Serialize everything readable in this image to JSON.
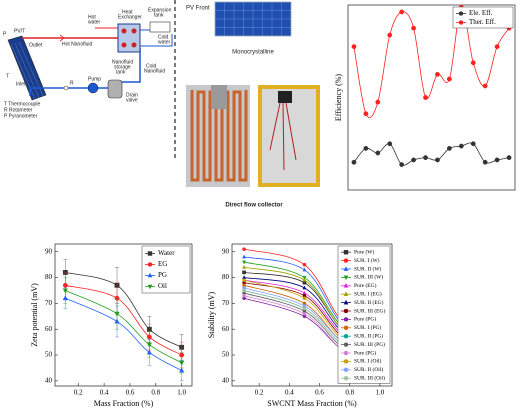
{
  "diagram": {
    "pvt": "PV/T",
    "p": "P",
    "t": "T",
    "inlet": "Inlet",
    "outlet": "Outlet",
    "hot_water": [
      "Hot",
      "water"
    ],
    "heat_exchanger": [
      "Heat",
      "Exchanger"
    ],
    "expansion_tank": [
      "Expansion",
      "tank"
    ],
    "cold_water": [
      "Cold",
      "water"
    ],
    "hot_nanofluid": "Hot Nanofluid",
    "cold_nanofluid": [
      "Cold",
      "Nanofluid"
    ],
    "r": "R",
    "pump": "Pump",
    "storage_tank": [
      "Nanofluid",
      "storage",
      "tank"
    ],
    "drain_valve": [
      "Drain",
      "valve"
    ],
    "legend": [
      "T  Thermocouple",
      "R  Rotameter",
      "P  Pyranometer"
    ],
    "pv_front": "PV Front",
    "monocrystalline": "Monocrystalline",
    "direct_flow": "Direct flow collector"
  },
  "chart_data": [
    {
      "type": "line",
      "ylabel": "Efficiency (%)",
      "smooth": true,
      "categories": [
        null,
        null,
        null,
        null,
        null,
        null,
        null,
        null,
        null,
        null,
        null,
        null,
        null,
        null
      ],
      "ylim": [
        0,
        80
      ],
      "legend": "upper right",
      "series": [
        {
          "name": "Ele. Eff.",
          "color": "#333333",
          "marker": "circle",
          "values": [
            12,
            18,
            16,
            20,
            11,
            13,
            14,
            13,
            18,
            19,
            20,
            12,
            13,
            14
          ]
        },
        {
          "name": "Ther. Eff.",
          "color": "#ff2020",
          "marker": "circle",
          "values": [
            62,
            33,
            38,
            67,
            77,
            70,
            40,
            50,
            48,
            79,
            55,
            45,
            62,
            70
          ]
        }
      ]
    },
    {
      "type": "line",
      "ylabel": "Zeta potential (mV)",
      "xlabel": "Mass Fraction (%)",
      "smooth": true,
      "x": [
        0.1,
        0.5,
        0.75,
        1.0
      ],
      "xlim": [
        0.02,
        1.08
      ],
      "ylim": [
        38,
        93
      ],
      "xticks": [
        0.2,
        0.4,
        0.6,
        0.8,
        {
          "value": 1,
          "label": "1.0"
        }
      ],
      "yticks": [
        40,
        50,
        60,
        70,
        80,
        90
      ],
      "legend": "upper right",
      "series": [
        {
          "name": "Water",
          "color": "#333333",
          "marker": "square",
          "values": [
            82,
            77,
            60,
            53
          ],
          "errors": [
            5,
            7,
            5,
            5
          ]
        },
        {
          "name": "EG",
          "color": "#ff2020",
          "marker": "circle",
          "values": [
            77,
            72,
            57,
            50
          ],
          "errors": [
            5,
            6,
            5,
            5
          ]
        },
        {
          "name": "PG",
          "color": "#2060ff",
          "marker": "triangle",
          "values": [
            72,
            63,
            51,
            44
          ],
          "errors": [
            4,
            6,
            5,
            4
          ]
        },
        {
          "name": "Oil",
          "color": "#20a020",
          "marker": "triangle-down",
          "values": [
            75,
            66,
            54,
            47
          ],
          "errors": [
            5,
            6,
            5,
            4
          ]
        }
      ]
    },
    {
      "type": "line",
      "ylabel": "Stability (mV)",
      "xlabel": "SWCNT Mass Fraction (%)",
      "smooth": true,
      "x": [
        0.1,
        0.5,
        0.75,
        1.0
      ],
      "xlim": [
        0.02,
        1.08
      ],
      "ylim": [
        38,
        93
      ],
      "xticks": [
        0.2,
        0.4,
        0.6,
        0.8,
        {
          "value": 1,
          "label": "1.0"
        }
      ],
      "yticks": [
        40,
        50,
        60,
        70,
        80,
        90
      ],
      "legend": "upper right",
      "series": [
        {
          "name": "Pure (W)",
          "color": "#333333",
          "marker": "square",
          "values": [
            82,
            78,
            60,
            53
          ]
        },
        {
          "name": "SUR. I (W)",
          "color": "#ff2020",
          "marker": "circle",
          "values": [
            91,
            85,
            63,
            56
          ]
        },
        {
          "name": "SUR. II (W)",
          "color": "#2060ff",
          "marker": "triangle",
          "values": [
            88,
            83,
            62,
            55
          ]
        },
        {
          "name": "SUR. III (W)",
          "color": "#20a020",
          "marker": "triangle-down",
          "values": [
            86,
            80,
            61,
            54
          ]
        },
        {
          "name": "Pure (EG)",
          "color": "#e020e0",
          "marker": "triangle",
          "values": [
            79,
            74,
            58,
            51
          ]
        },
        {
          "name": "SUR. I (EG)",
          "color": "#a0a000",
          "marker": "triangle",
          "values": [
            84,
            79,
            60,
            53
          ]
        },
        {
          "name": "SUR. II (EG)",
          "color": "#000080",
          "marker": "triangle",
          "values": [
            80,
            76,
            59,
            52
          ]
        },
        {
          "name": "SUR. III (EG)",
          "color": "#800000",
          "marker": "circle",
          "values": [
            78,
            73,
            57,
            50
          ]
        },
        {
          "name": "Pure (PG)",
          "color": "#8020a0",
          "marker": "circle",
          "values": [
            72,
            65,
            52,
            45
          ]
        },
        {
          "name": "SUR. I (PG)",
          "color": "#cc6600",
          "marker": "circle",
          "values": [
            77,
            70,
            55,
            48
          ]
        },
        {
          "name": "SUR. II (PG)",
          "color": "#00a0a0",
          "marker": "circle",
          "values": [
            75,
            68,
            54,
            47
          ]
        },
        {
          "name": "SUR. III (PG)",
          "color": "#606060",
          "marker": "circle",
          "values": [
            74,
            67,
            53,
            46
          ]
        },
        {
          "name": "Pure (PG)",
          "color": "#d080d0",
          "marker": "circle",
          "values": [
            73,
            66,
            52,
            45
          ]
        },
        {
          "name": "SUR. I (Oil)",
          "color": "#c8a000",
          "marker": "circle",
          "values": [
            79,
            72,
            56,
            49
          ]
        },
        {
          "name": "SUR. II (Oil)",
          "color": "#80a0ff",
          "marker": "circle",
          "values": [
            76,
            69,
            55,
            48
          ]
        },
        {
          "name": "SUR. III (Oil)",
          "color": "#a0c0a0",
          "marker": "circle",
          "values": [
            75,
            68,
            54,
            47
          ]
        }
      ]
    }
  ]
}
